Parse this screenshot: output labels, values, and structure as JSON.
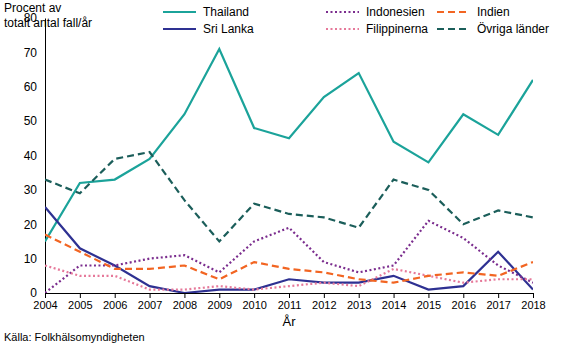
{
  "chart_data": {
    "type": "line",
    "ylabel": [
      "Procent av",
      "totalt antal fall/år"
    ],
    "xlabel": "År",
    "source": "Källa: Folkhälsomyndigheten",
    "x": [
      2004,
      2005,
      2006,
      2007,
      2008,
      2009,
      2010,
      2011,
      2012,
      2013,
      2014,
      2015,
      2016,
      2017,
      2018
    ],
    "xlim": [
      2004,
      2018
    ],
    "xticks": [
      2004,
      2005,
      2006,
      2007,
      2008,
      2009,
      2010,
      2011,
      2012,
      2013,
      2014,
      2015,
      2016,
      2017,
      2018
    ],
    "ylim": [
      0,
      80
    ],
    "yticks": [
      0,
      10,
      20,
      30,
      40,
      50,
      60,
      70,
      80
    ],
    "grid": false,
    "legend": "top",
    "series": [
      {
        "name": "Thailand",
        "color": "#1ba39a",
        "line_style": "solid",
        "values": [
          15,
          32,
          33,
          39,
          52,
          71,
          48,
          45,
          57,
          64,
          44,
          38,
          52,
          46,
          62
        ]
      },
      {
        "name": "Sri Lanka",
        "color": "#2e3192",
        "line_style": "solid",
        "values": [
          25,
          13,
          8,
          2,
          0,
          1,
          1,
          4,
          3,
          3,
          5,
          1,
          2,
          12,
          1
        ]
      },
      {
        "name": "Indonesien",
        "color": "#7b2d8e",
        "line_style": "dotted",
        "values": [
          0,
          8,
          8,
          10,
          11,
          6,
          15,
          19,
          9,
          6,
          8,
          21,
          16,
          8,
          3
        ]
      },
      {
        "name": "Filippinerna",
        "color": "#e6799a",
        "line_style": "dotted",
        "values": [
          8,
          5,
          5,
          1,
          1,
          2,
          1,
          2,
          3,
          2,
          7,
          5,
          3,
          4,
          4
        ]
      },
      {
        "name": "Indien",
        "color": "#f26522",
        "line_style": "dashed",
        "values": [
          17,
          12,
          7,
          7,
          8,
          4,
          9,
          7,
          6,
          4,
          3,
          5,
          6,
          5,
          9
        ]
      },
      {
        "name": "Övriga länder",
        "color": "#1b5e5a",
        "line_style": "dashed",
        "values": [
          33,
          29,
          39,
          41,
          27,
          15,
          26,
          23,
          22,
          19,
          33,
          30,
          20,
          24,
          22
        ]
      }
    ]
  }
}
